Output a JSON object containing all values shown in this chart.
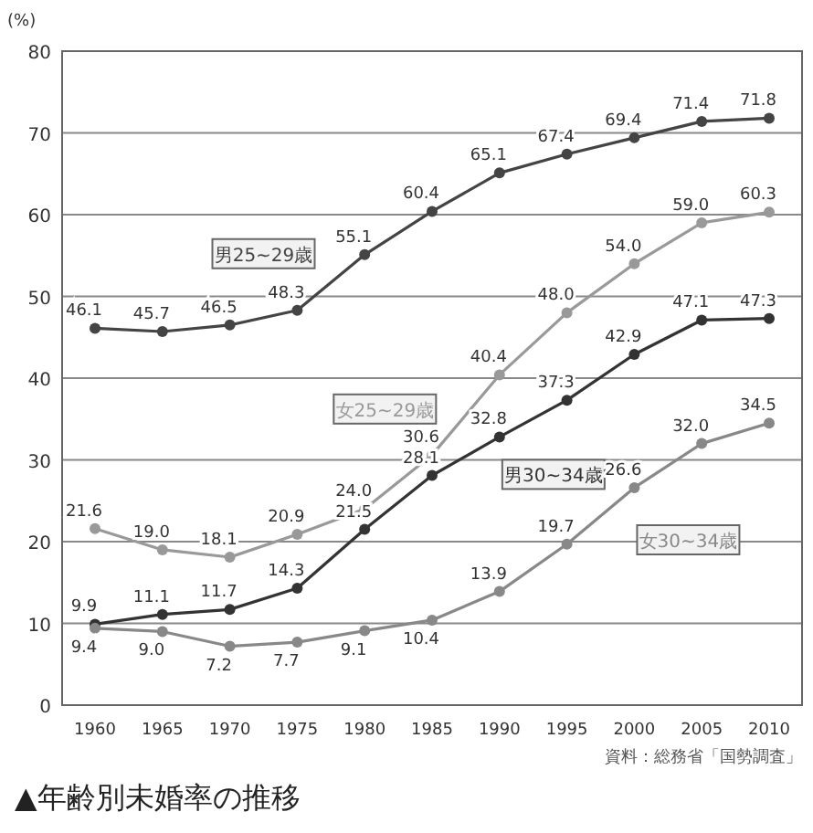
{
  "chart_data": {
    "type": "line",
    "title": "▲年齢別未婚率の推移",
    "ylabel": "(%)",
    "annotations": [
      "資料：総務省「国勢調査」"
    ],
    "categories": [
      "1960",
      "1965",
      "1970",
      "1975",
      "1980",
      "1985",
      "1990",
      "1995",
      "2000",
      "2005",
      "2010"
    ],
    "ylim": [
      0,
      80
    ],
    "yticks": [
      0,
      10,
      20,
      30,
      40,
      50,
      60,
      70,
      80
    ],
    "grid": "y",
    "marker": "circle",
    "line_style": "solid",
    "series": [
      {
        "name": "男25~29歳",
        "color": "#444444",
        "values": [
          46.1,
          45.7,
          46.5,
          48.3,
          55.1,
          60.4,
          65.1,
          67.4,
          69.4,
          71.4,
          71.8
        ],
        "value_labels": [
          "46.1",
          "45.7",
          "46.5",
          "48.3",
          "55.1",
          "60.4",
          "65.1",
          "67.4",
          "69.4",
          "71.4",
          "71.8"
        ]
      },
      {
        "name": "女25~29歳",
        "color": "#999999",
        "values": [
          21.6,
          19.0,
          18.1,
          20.9,
          24.0,
          30.6,
          40.4,
          48.0,
          54.0,
          59.0,
          60.3
        ],
        "value_labels": [
          "21.6",
          "19.0",
          "18.1",
          "20.9",
          "24.0",
          "30.6",
          "40.4",
          "48.0",
          "54.0",
          "59.0",
          "60.3"
        ]
      },
      {
        "name": "男30~34歳",
        "color": "#333333",
        "values": [
          9.9,
          11.1,
          11.7,
          14.3,
          21.5,
          28.1,
          32.8,
          37.3,
          42.9,
          47.1,
          47.3
        ],
        "value_labels": [
          "9.9",
          "11.1",
          "11.7",
          "14.3",
          "21.5",
          "28.1",
          "32.8",
          "37.3",
          "42.9",
          "47.1",
          "47.3"
        ]
      },
      {
        "name": "女30~34歳",
        "color": "#888888",
        "values": [
          9.4,
          9.0,
          7.2,
          7.7,
          9.1,
          10.4,
          13.9,
          19.7,
          26.6,
          32.0,
          34.5
        ],
        "value_labels": [
          "9.4",
          "9.0",
          "7.2",
          "7.7",
          "9.1",
          "10.4",
          "13.9",
          "19.7",
          "26.6",
          "32.0",
          "34.5"
        ]
      }
    ]
  }
}
